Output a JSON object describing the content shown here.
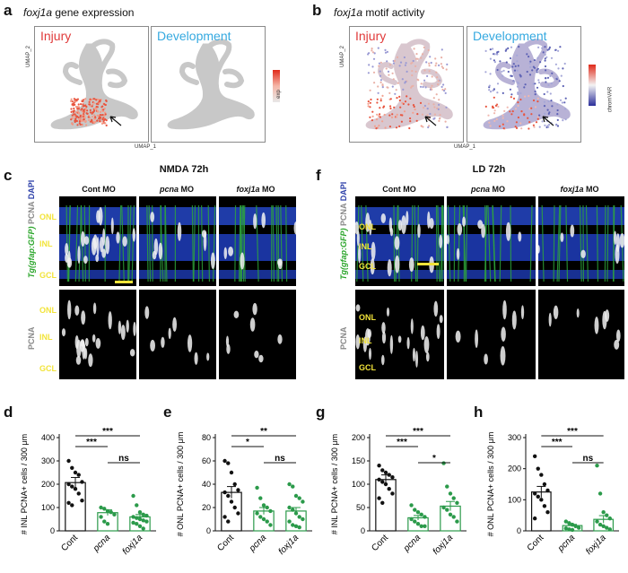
{
  "panels": {
    "a": {
      "letter": "a",
      "title_gene": "foxj1a",
      "title_rest": " gene expression"
    },
    "b": {
      "letter": "b",
      "title_gene": "foxj1a",
      "title_rest": " motif activity"
    },
    "c": {
      "letter": "c",
      "condition": "NMDA 72h"
    },
    "f": {
      "letter": "f",
      "condition": "LD 72h"
    },
    "d": {
      "letter": "d"
    },
    "e": {
      "letter": "e"
    },
    "g": {
      "letter": "g"
    },
    "h": {
      "letter": "h"
    }
  },
  "umap": {
    "injury": "Injury",
    "development": "Development",
    "x_axis": "UMAP_1",
    "y_axis": "UMAP_2",
    "legend_a": "exp",
    "legend_b": "chromVAR",
    "colors": {
      "injury": "#e03a3a",
      "development": "#35a9e0",
      "grey": "#c8c8c8",
      "red": "#e8553f",
      "blue": "#5d62b5"
    }
  },
  "micro": {
    "columns": [
      "Cont MO",
      "pcna MO",
      "foxj1a MO"
    ],
    "col_gene": [
      "",
      "pcna",
      "foxj1a"
    ],
    "layers": [
      "ONL",
      "INL",
      "GCL"
    ],
    "stain_label_tg": "Tg(gfap:GFP)",
    "stain_label_pcna": "PCNA",
    "stain_label_dapi": "DAPI",
    "pcna_label": "PCNA"
  },
  "chart_data": [
    {
      "type": "bar",
      "panel": "d",
      "ylabel": "# INL PCNA+ cells / 300 μm",
      "categories": [
        "Cont",
        "pcna",
        "foxj1a"
      ],
      "values": [
        207,
        78,
        60
      ],
      "errors": [
        22,
        12,
        10
      ],
      "ylim": [
        0,
        400
      ],
      "yticks": [
        0,
        100,
        200,
        300,
        400
      ],
      "points": [
        [
          300,
          270,
          250,
          240,
          210,
          200,
          190,
          180,
          160,
          130,
          120,
          110
        ],
        [
          100,
          95,
          85,
          80,
          70,
          60,
          40,
          30
        ],
        [
          150,
          110,
          80,
          70,
          65,
          60,
          55,
          50,
          45,
          40,
          35,
          30,
          20,
          10
        ]
      ],
      "significance": [
        {
          "from": 0,
          "to": 1,
          "label": "***"
        },
        {
          "from": 0,
          "to": 2,
          "label": "***"
        },
        {
          "from": 1,
          "to": 2,
          "label": "ns"
        }
      ]
    },
    {
      "type": "bar",
      "panel": "e",
      "ylabel": "# ONL PCNA+ cells / 300 μm",
      "categories": [
        "Cont",
        "pcna",
        "foxj1a"
      ],
      "values": [
        33,
        17,
        17
      ],
      "errors": [
        5,
        3,
        3
      ],
      "ylim": [
        0,
        80
      ],
      "yticks": [
        0,
        20,
        40,
        60,
        80
      ],
      "points": [
        [
          60,
          58,
          50,
          40,
          35,
          33,
          30,
          25,
          20,
          15,
          12,
          8
        ],
        [
          37,
          28,
          22,
          20,
          17,
          15,
          12,
          10,
          8,
          5
        ],
        [
          40,
          38,
          30,
          28,
          25,
          20,
          18,
          15,
          12,
          10,
          8,
          5,
          4,
          3
        ]
      ],
      "significance": [
        {
          "from": 0,
          "to": 1,
          "label": "*"
        },
        {
          "from": 0,
          "to": 2,
          "label": "**"
        },
        {
          "from": 1,
          "to": 2,
          "label": "ns"
        }
      ]
    },
    {
      "type": "bar",
      "panel": "g",
      "ylabel": "# INL PCNA+ cells / 300 μm",
      "categories": [
        "Cont",
        "pcna",
        "foxj1a"
      ],
      "values": [
        110,
        28,
        53
      ],
      "errors": [
        10,
        5,
        10
      ],
      "ylim": [
        0,
        200
      ],
      "yticks": [
        0,
        50,
        100,
        150,
        200
      ],
      "points": [
        [
          140,
          130,
          125,
          120,
          115,
          110,
          105,
          100,
          90,
          80,
          70,
          60
        ],
        [
          55,
          45,
          40,
          35,
          30,
          25,
          20,
          15,
          10,
          10
        ],
        [
          145,
          95,
          80,
          70,
          60,
          50,
          45,
          35,
          30,
          20
        ]
      ],
      "significance": [
        {
          "from": 0,
          "to": 1,
          "label": "***"
        },
        {
          "from": 0,
          "to": 2,
          "label": "***"
        },
        {
          "from": 1,
          "to": 2,
          "label": "*"
        }
      ]
    },
    {
      "type": "bar",
      "panel": "h",
      "ylabel": "# ONL PCNA+ cells / 300 μm",
      "categories": [
        "Cont",
        "pcna",
        "foxj1a"
      ],
      "values": [
        125,
        17,
        37
      ],
      "errors": [
        18,
        4,
        12
      ],
      "ylim": [
        0,
        300
      ],
      "yticks": [
        0,
        100,
        200,
        300
      ],
      "points": [
        [
          240,
          200,
          180,
          150,
          130,
          120,
          110,
          100,
          80,
          60,
          40
        ],
        [
          30,
          25,
          20,
          15,
          10,
          8,
          5,
          3
        ],
        [
          210,
          120,
          60,
          50,
          40,
          30,
          20,
          15,
          10,
          5
        ]
      ],
      "significance": [
        {
          "from": 0,
          "to": 1,
          "label": "***"
        },
        {
          "from": 0,
          "to": 2,
          "label": "***"
        },
        {
          "from": 1,
          "to": 2,
          "label": "ns"
        }
      ]
    }
  ]
}
